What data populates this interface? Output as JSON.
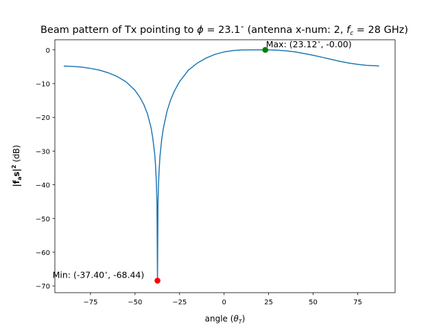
{
  "chart_data": {
    "type": "line",
    "title_main": "Beam pattern of Tx pointing to ",
    "title_phi_symbol": "ϕ",
    "title_phi_value": " = 23.1",
    "title_degree": "∘",
    "title_mid": " (antenna x-num: 2, ",
    "title_f": "f",
    "title_c": "c",
    "title_end": " = 28 GHz)",
    "xlabel_text": "angle (",
    "xlabel_theta": "θ",
    "xlabel_T": "T",
    "xlabel_close": ")",
    "ylabel_base": "|f",
    "ylabel_sub": "a",
    "ylabel_s": "s|",
    "ylabel_sup": "2",
    "ylabel_unit": " (dB)",
    "xlim": [
      -95,
      96
    ],
    "ylim": [
      -72,
      3
    ],
    "xticks": [
      -75,
      -50,
      -25,
      0,
      25,
      50,
      75
    ],
    "xtick_labels": [
      "−75",
      "−50",
      "−25",
      "0",
      "25",
      "50",
      "75"
    ],
    "yticks": [
      0,
      -10,
      -20,
      -30,
      -40,
      -50,
      -60,
      -70
    ],
    "ytick_labels": [
      "0",
      "−10",
      "−20",
      "−30",
      "−40",
      "−50",
      "−60",
      "−70"
    ],
    "series": [
      {
        "color": "#1f77b4",
        "x": [
          -90,
          -85,
          -80,
          -75,
          -70,
          -65,
          -60,
          -55,
          -50,
          -47,
          -45,
          -43,
          -41,
          -40,
          -39,
          -38.5,
          -38,
          -37.7,
          -37.4,
          -37.1,
          -36.8,
          -36.5,
          -36,
          -35,
          -34,
          -32,
          -30,
          -28,
          -25,
          -20,
          -15,
          -10,
          -5,
          0,
          5,
          10,
          15,
          20,
          23.1,
          25,
          30,
          35,
          40,
          45,
          50,
          55,
          60,
          65,
          70,
          75,
          80,
          85,
          87
        ],
        "y": [
          -4.8,
          -4.9,
          -5.1,
          -5.5,
          -6.0,
          -6.8,
          -7.9,
          -9.5,
          -12.0,
          -14.3,
          -16.3,
          -19.0,
          -23.1,
          -26.3,
          -30.7,
          -34.1,
          -39.7,
          -45.4,
          -68.44,
          -45.2,
          -39.5,
          -35.8,
          -31.6,
          -26.4,
          -23.0,
          -18.1,
          -14.8,
          -12.3,
          -9.4,
          -6.0,
          -3.9,
          -2.4,
          -1.3,
          -0.6,
          -0.2,
          -0.03,
          0.0,
          -0.01,
          0.0,
          -0.01,
          -0.1,
          -0.3,
          -0.6,
          -1.1,
          -1.6,
          -2.2,
          -2.8,
          -3.4,
          -3.9,
          -4.3,
          -4.6,
          -4.7,
          -4.8
        ]
      }
    ],
    "max_point": {
      "x": 23.12,
      "y": 0.0,
      "color": "#008000",
      "label": "Max: (23.12",
      "label_deg": "∘",
      "label_end": ", -0.00)"
    },
    "min_point": {
      "x": -37.4,
      "y": -68.44,
      "color": "#ff0000",
      "label": "Min: (-37.40",
      "label_deg": "∘",
      "label_end": ", -68.44)"
    }
  }
}
